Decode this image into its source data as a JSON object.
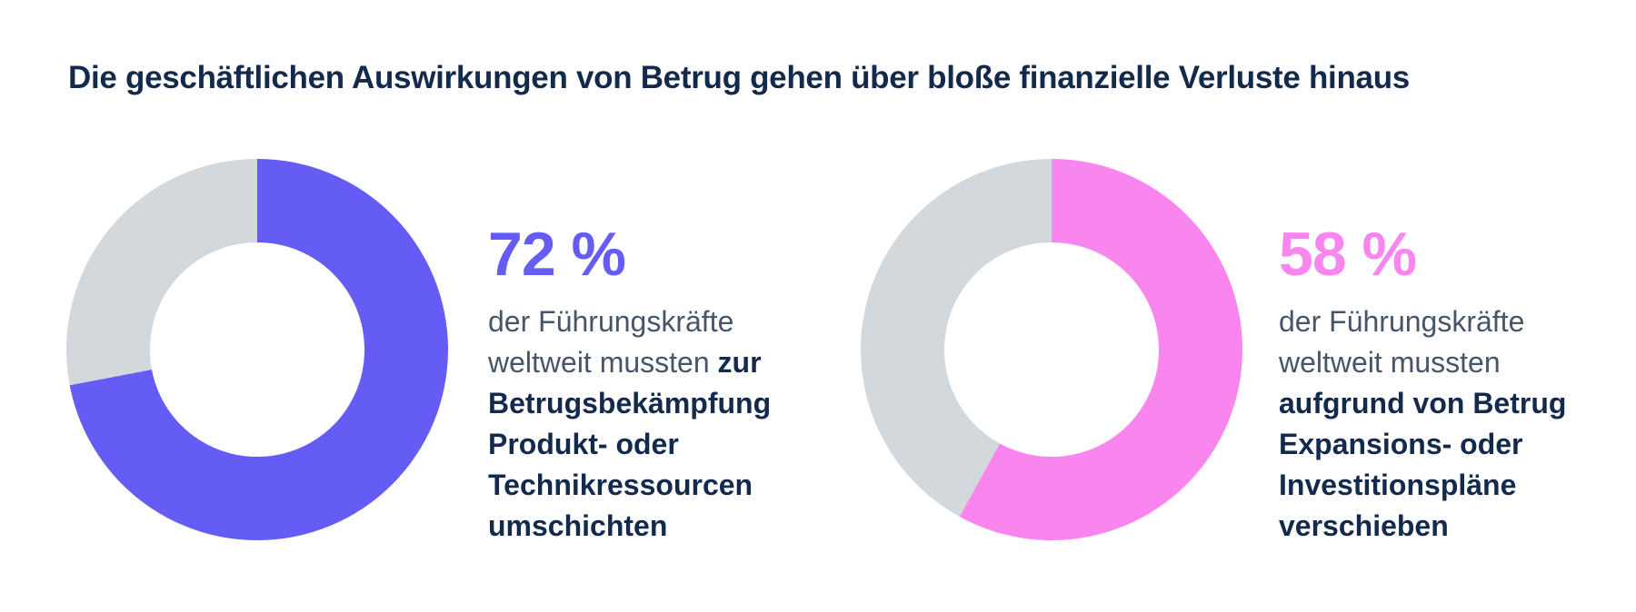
{
  "title": "Die geschäftlichen Auswirkungen von Betrug gehen über bloße finanzielle Verluste hinaus",
  "colors": {
    "navy": "#132A4D",
    "slate": "#475569",
    "purple": "#645CF4",
    "pink": "#F985EF",
    "track": "#D3D8DD",
    "background": "#FFFFFF"
  },
  "stats": [
    {
      "value": "72 %",
      "percent": 72,
      "donut": {
        "percent": 72,
        "color": "#645CF4",
        "track_color": "#D3D8DD"
      },
      "line1": "der Führungskräfte",
      "line2_normal": "weltweit mussten ",
      "line2_bold": "zur",
      "line3": "Betrugsbekämpfung",
      "line4": "Produkt- oder",
      "line5": "Technikressourcen",
      "line6": "umschichten"
    },
    {
      "value": "58 %",
      "percent": 58,
      "donut": {
        "percent": 58,
        "color": "#F985EF",
        "track_color": "#D3D8DD"
      },
      "line1": "der Führungskräfte",
      "line2_normal": "weltweit mussten",
      "line2_bold": "",
      "line3": "aufgrund von Betrug",
      "line4": "Expansions- oder",
      "line5": "Investitionspläne",
      "line6": "verschieben"
    }
  ],
  "chart_data": [
    {
      "type": "pie",
      "subtype": "donut",
      "title": "Die geschäftlichen Auswirkungen von Betrug gehen über bloße finanzielle Verluste hinaus",
      "annotation": "72 % der Führungskräfte weltweit mussten zur Betrugsbekämpfung Produkt- oder Technikressourcen umschichten",
      "slices": [
        {
          "label": "72 %",
          "value": 72,
          "color": "#645CF4"
        },
        {
          "label": "Rest",
          "value": 28,
          "color": "#D3D8DD"
        }
      ],
      "start_angle_deg": 0,
      "direction": "clockwise",
      "legend": false
    },
    {
      "type": "pie",
      "subtype": "donut",
      "title": "Die geschäftlichen Auswirkungen von Betrug gehen über bloße finanzielle Verluste hinaus",
      "annotation": "58 % der Führungskräfte weltweit mussten aufgrund von Betrug Expansions- oder Investitionspläne verschieben",
      "slices": [
        {
          "label": "58 %",
          "value": 58,
          "color": "#F985EF"
        },
        {
          "label": "Rest",
          "value": 42,
          "color": "#D3D8DD"
        }
      ],
      "start_angle_deg": 0,
      "direction": "clockwise",
      "legend": false
    }
  ]
}
